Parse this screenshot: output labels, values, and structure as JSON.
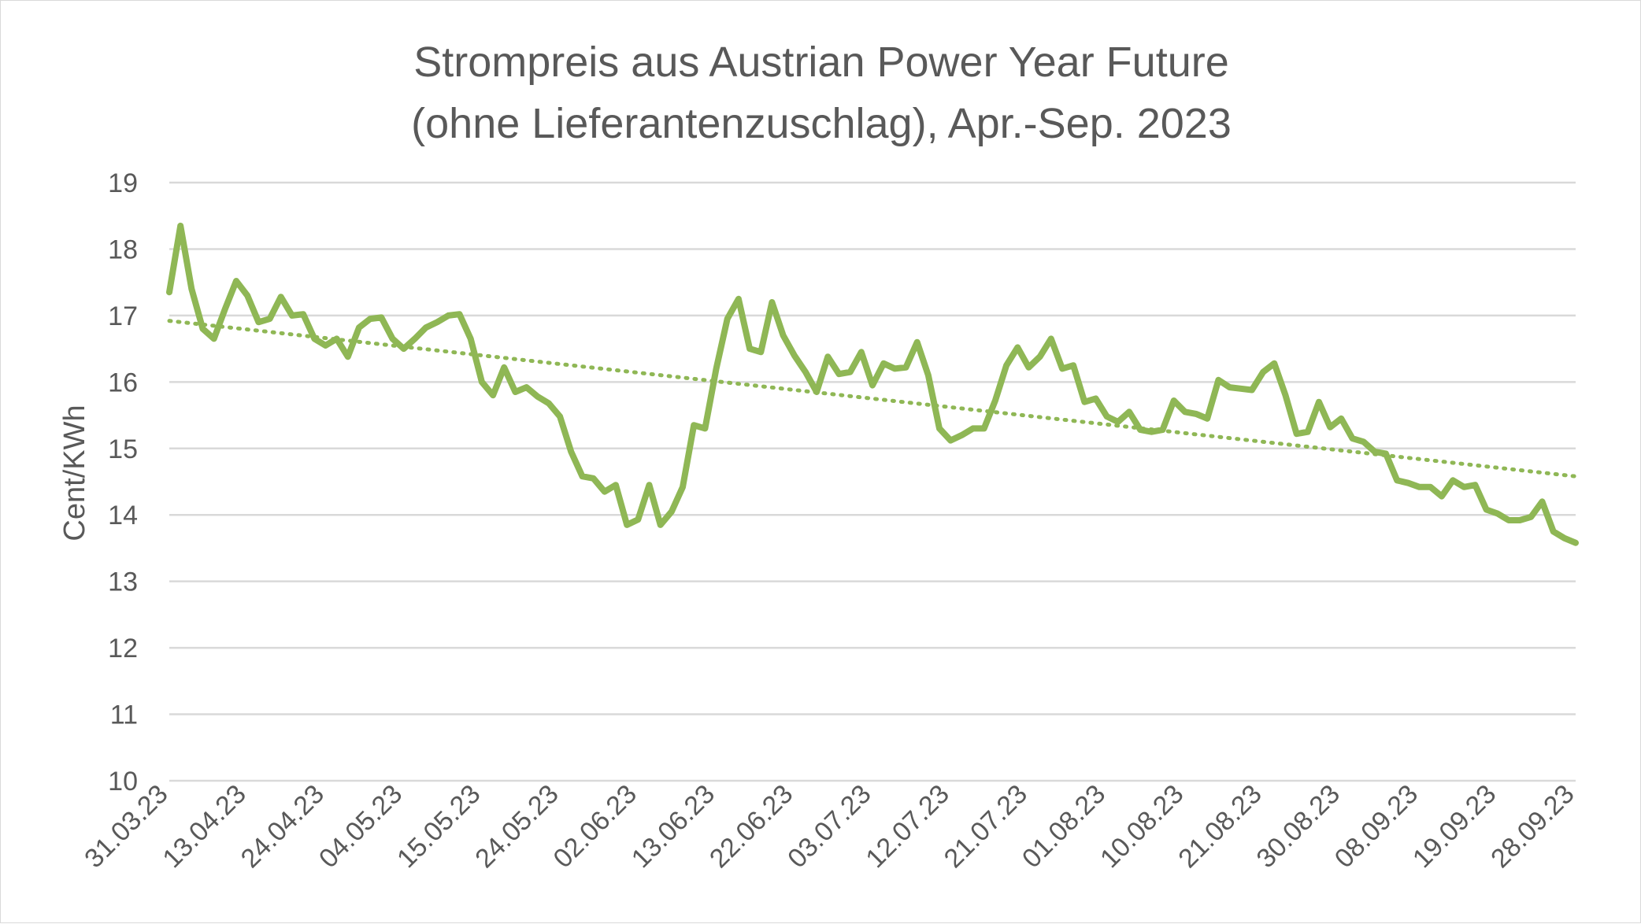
{
  "chart_data": {
    "type": "line",
    "title": [
      "Strompreis aus Austrian Power Year Future",
      "(ohne Lieferantenzuschlag), Apr.-Sep. 2023"
    ],
    "ylabel": "Cent/KWh",
    "xlabel": "",
    "ylim": [
      10,
      19
    ],
    "yticks": [
      10,
      11,
      12,
      13,
      14,
      15,
      16,
      17,
      18,
      19
    ],
    "grid": true,
    "legend": "none",
    "x_tick_labels": [
      "31.03.23",
      "13.04.23",
      "24.04.23",
      "04.05.23",
      "15.05.23",
      "24.05.23",
      "02.06.23",
      "13.06.23",
      "22.06.23",
      "03.07.23",
      "12.07.23",
      "21.07.23",
      "01.08.23",
      "10.08.23",
      "21.08.23",
      "30.08.23",
      "08.09.23",
      "19.09.23",
      "28.09.23"
    ],
    "series": [
      {
        "style": "solid",
        "color": "#8fb755",
        "values": [
          17.35,
          18.35,
          17.4,
          16.8,
          16.65,
          17.1,
          17.52,
          17.3,
          16.9,
          16.95,
          17.28,
          17.0,
          17.02,
          16.65,
          16.55,
          16.65,
          16.38,
          16.82,
          16.95,
          16.97,
          16.65,
          16.5,
          16.65,
          16.82,
          16.9,
          17.0,
          17.02,
          16.65,
          16.0,
          15.8,
          16.22,
          15.85,
          15.92,
          15.78,
          15.68,
          15.48,
          14.95,
          14.58,
          14.55,
          14.35,
          14.45,
          13.85,
          13.93,
          14.45,
          13.85,
          14.05,
          14.42,
          15.35,
          15.3,
          16.2,
          16.95,
          17.25,
          16.5,
          16.45,
          17.2,
          16.7,
          16.4,
          16.15,
          15.85,
          16.38,
          16.12,
          16.15,
          16.45,
          15.95,
          16.28,
          16.2,
          16.22,
          16.6,
          16.1,
          15.3,
          15.12,
          15.2,
          15.3,
          15.3,
          15.72,
          16.25,
          16.52,
          16.22,
          16.38,
          16.65,
          16.2,
          16.25,
          15.7,
          15.75,
          15.48,
          15.4,
          15.55,
          15.28,
          15.25,
          15.28,
          15.72,
          15.55,
          15.52,
          15.45,
          16.03,
          15.92,
          15.9,
          15.88,
          16.15,
          16.28,
          15.8,
          15.22,
          15.25,
          15.7,
          15.32,
          15.45,
          15.15,
          15.1,
          14.95,
          14.92,
          14.52,
          14.48,
          14.42,
          14.42,
          14.28,
          14.52,
          14.42,
          14.45,
          14.08,
          14.02,
          13.92,
          13.92,
          13.97,
          14.2,
          13.75,
          13.65,
          13.58
        ]
      },
      {
        "style": "dotted",
        "color": "#8fb755",
        "start": 16.92,
        "end": 14.58
      }
    ]
  }
}
